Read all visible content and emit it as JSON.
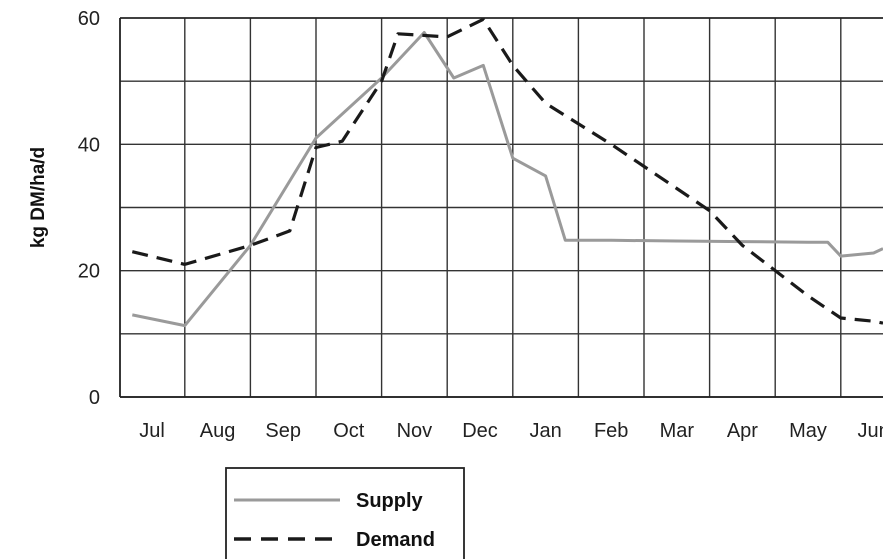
{
  "chart_data": {
    "type": "line",
    "title": "",
    "xlabel": "",
    "ylabel": "kg DM/ha/d",
    "categories": [
      "Jul",
      "Aug",
      "Sep",
      "Oct",
      "Nov",
      "Dec",
      "Jan",
      "Feb",
      "Mar",
      "Apr",
      "May",
      "Jun"
    ],
    "ylim": [
      0,
      60
    ],
    "yticks": [
      0,
      20,
      40,
      60
    ],
    "grid": true,
    "legend_position": "bottom-left",
    "series": [
      {
        "name": "Supply",
        "color": "#9a9a9a",
        "line_style": "solid",
        "points": [
          {
            "x": -0.3,
            "y": 13.0
          },
          {
            "x": 0.5,
            "y": 11.3
          },
          {
            "x": 1.5,
            "y": 24.0
          },
          {
            "x": 2.5,
            "y": 41.0
          },
          {
            "x": 3.5,
            "y": 50.5
          },
          {
            "x": 4.15,
            "y": 57.7
          },
          {
            "x": 4.6,
            "y": 50.5
          },
          {
            "x": 5.05,
            "y": 52.5
          },
          {
            "x": 5.5,
            "y": 37.8
          },
          {
            "x": 6.0,
            "y": 35.0
          },
          {
            "x": 6.3,
            "y": 24.8
          },
          {
            "x": 7.0,
            "y": 24.8
          },
          {
            "x": 8.0,
            "y": 24.7
          },
          {
            "x": 9.0,
            "y": 24.6
          },
          {
            "x": 10.0,
            "y": 24.5
          },
          {
            "x": 10.3,
            "y": 24.5
          },
          {
            "x": 10.5,
            "y": 22.3
          },
          {
            "x": 11.0,
            "y": 22.8
          },
          {
            "x": 11.6,
            "y": 23.5
          }
        ]
      },
      {
        "name": "Demand",
        "color": "#1a1a1a",
        "line_style": "dashed",
        "points": [
          {
            "x": -0.3,
            "y": 23.0
          },
          {
            "x": 0.5,
            "y": 21.0
          },
          {
            "x": 1.5,
            "y": 24.0
          },
          {
            "x": 2.1,
            "y": 26.3
          },
          {
            "x": 2.5,
            "y": 39.5
          },
          {
            "x": 2.9,
            "y": 40.5
          },
          {
            "x": 3.5,
            "y": 50.0
          },
          {
            "x": 3.75,
            "y": 57.5
          },
          {
            "x": 4.5,
            "y": 57.0
          },
          {
            "x": 5.05,
            "y": 59.8
          },
          {
            "x": 5.5,
            "y": 52.5
          },
          {
            "x": 6.0,
            "y": 46.5
          },
          {
            "x": 7.0,
            "y": 40.0
          },
          {
            "x": 8.0,
            "y": 33.0
          },
          {
            "x": 8.5,
            "y": 29.5
          },
          {
            "x": 9.0,
            "y": 24.0
          },
          {
            "x": 10.0,
            "y": 16.0
          },
          {
            "x": 10.5,
            "y": 12.5
          },
          {
            "x": 11.0,
            "y": 12.0
          },
          {
            "x": 11.6,
            "y": 11.7
          }
        ]
      }
    ]
  }
}
